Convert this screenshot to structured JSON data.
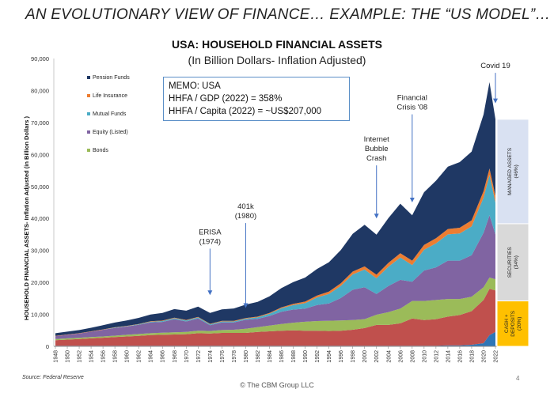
{
  "slide": {
    "title": "AN EVOLUTIONARY VIEW OF FINANCE… EXAMPLE: THE “US MODEL”…",
    "source": "Source: Federal Reserve",
    "footer": "© The CBM Group LLC",
    "page_number": "4"
  },
  "memo": {
    "line1": "MEMO: USA",
    "line2": "HHFA / GDP (2022) = 358%",
    "line3": "HHFA / Capita (2022) = ~US$207,000"
  },
  "annotations": [
    {
      "lines": [
        "ERISA",
        "(1974)"
      ],
      "year": 1974,
      "tip_value": 16000,
      "text_value": 35000
    },
    {
      "lines": [
        "401k",
        "(1980)"
      ],
      "year": 1980,
      "tip_value": 12000,
      "text_value": 43000
    },
    {
      "lines": [
        "Internet",
        "Bubble",
        "Crash"
      ],
      "year": 2002,
      "tip_value": 40000,
      "text_value": 64000
    },
    {
      "lines": [
        "Financial",
        "Crisis '08"
      ],
      "year": 2008,
      "tip_value": 45000,
      "text_value": 77000
    },
    {
      "lines": [
        "Covid 19"
      ],
      "year": 2022,
      "tip_value": 76000,
      "text_value": 87000
    }
  ],
  "side_boxes": [
    {
      "label": "MANAGED ASSETS (46%)",
      "color": "#d9e1f2",
      "from": 0.54,
      "to": 1.0
    },
    {
      "label": "SECURITIES (34%)",
      "color": "#d9d9d9",
      "from": 0.2,
      "to": 0.54
    },
    {
      "label": "CASH + DEPOSITS (20%)",
      "color": "#ffc000",
      "from": 0.0,
      "to": 0.2
    }
  ],
  "chart_data": {
    "type": "area",
    "title": "USA: HOUSEHOLD FINANCIAL ASSETS",
    "subtitle": "(In Billion Dollars- Inflation Adjusted)",
    "ylabel": "HOUSEHOLD FINANCIAL ASSETS- Inflation Adjusted (in Billion Dollars )",
    "xlabel": "",
    "ylim": [
      0,
      90000
    ],
    "yticks": [
      "0",
      "10,000",
      "20,000",
      "30,000",
      "40,000",
      "50,000",
      "60,000",
      "70,000",
      "80,000",
      "90,000"
    ],
    "x": [
      1948,
      1950,
      1952,
      1954,
      1956,
      1958,
      1960,
      1962,
      1964,
      1966,
      1968,
      1970,
      1972,
      1974,
      1976,
      1978,
      1980,
      1982,
      1984,
      1986,
      1988,
      1990,
      1992,
      1994,
      1996,
      1998,
      2000,
      2002,
      2004,
      2006,
      2008,
      2010,
      2012,
      2014,
      2016,
      2018,
      2020,
      2021,
      2022
    ],
    "xtick_labels": [
      "1948",
      "1950",
      "1952",
      "1954",
      "1956",
      "1958",
      "1960",
      "1962",
      "1964",
      "1966",
      "1968",
      "1970",
      "1972",
      "1974",
      "1976",
      "1978",
      "1980",
      "1982",
      "1984",
      "1986",
      "1988",
      "1990",
      "1992",
      "1994",
      "1996",
      "1998",
      "2000",
      "2002",
      "2004",
      "2006",
      "2008",
      "2010",
      "2012",
      "2014",
      "2016",
      "2018",
      "2020",
      "2022"
    ],
    "legend_position": "top-left",
    "stack_order_bottom_to_top": [
      "Deposits",
      "Bonds",
      "Equity (Listed)",
      "Mutual Funds",
      "Life Insurance",
      "Pension Funds"
    ],
    "series": [
      {
        "name": "Pension Funds",
        "color": "#1f3864",
        "values": [
          800,
          900,
          1000,
          1100,
          1300,
          1500,
          1700,
          1900,
          2100,
          2400,
          2700,
          2900,
          3200,
          3400,
          3600,
          3900,
          4200,
          4600,
          5200,
          6000,
          6800,
          7500,
          8300,
          9200,
          10400,
          11800,
          13000,
          12500,
          14000,
          15500,
          14200,
          16500,
          18000,
          19500,
          20500,
          21500,
          24000,
          27000,
          24000
        ]
      },
      {
        "name": "Life Insurance",
        "color": "#ed7d31",
        "values": [
          100,
          100,
          100,
          100,
          100,
          100,
          100,
          100,
          150,
          150,
          150,
          150,
          150,
          150,
          150,
          150,
          200,
          200,
          250,
          300,
          400,
          500,
          600,
          700,
          800,
          900,
          1000,
          1100,
          1200,
          1300,
          1400,
          1500,
          1600,
          1700,
          1800,
          1900,
          2000,
          2100,
          2000
        ]
      },
      {
        "name": "Mutual Funds",
        "color": "#4bacc6",
        "values": [
          0,
          0,
          0,
          0,
          0,
          100,
          100,
          150,
          200,
          250,
          300,
          300,
          350,
          300,
          300,
          300,
          350,
          500,
          700,
          1100,
          1400,
          1700,
          2400,
          3000,
          3800,
          4800,
          5500,
          4900,
          6000,
          7000,
          5200,
          6500,
          7500,
          8200,
          8500,
          9000,
          11000,
          12500,
          10000
        ]
      },
      {
        "name": "Equity (Listed)",
        "color": "#8064a2",
        "values": [
          900,
          1100,
          1300,
          1700,
          2100,
          2400,
          2600,
          2900,
          3400,
          3400,
          4100,
          3300,
          3800,
          1800,
          2400,
          2300,
          2800,
          2600,
          3000,
          3800,
          4100,
          4100,
          5000,
          5400,
          7000,
          9500,
          10000,
          6500,
          8200,
          9000,
          6000,
          9500,
          10200,
          12000,
          12000,
          13000,
          17000,
          19500,
          14000
        ]
      },
      {
        "name": "Bonds",
        "color": "#9bbb59",
        "values": [
          400,
          400,
          400,
          400,
          400,
          450,
          500,
          550,
          600,
          650,
          700,
          700,
          800,
          800,
          900,
          1000,
          1300,
          1500,
          1800,
          2100,
          2400,
          2800,
          3000,
          3200,
          3200,
          3000,
          2800,
          3200,
          4000,
          4600,
          5500,
          6000,
          6000,
          5500,
          5000,
          4500,
          4000,
          3500,
          3500
        ]
      },
      {
        "name": "Deposits",
        "color": "#c0504d",
        "values": [
          1700,
          1900,
          2100,
          2300,
          2500,
          2700,
          2900,
          3100,
          3300,
          3400,
          3500,
          3600,
          3900,
          3800,
          4000,
          4000,
          4000,
          4300,
          4500,
          4700,
          4800,
          4700,
          4700,
          4600,
          4700,
          5000,
          5500,
          6500,
          6500,
          7000,
          8500,
          8000,
          8300,
          9000,
          9500,
          10500,
          13500,
          14500,
          13000
        ]
      },
      {
        "name": "Cash",
        "color": "#2e75b6",
        "values": [
          200,
          200,
          200,
          200,
          200,
          200,
          200,
          200,
          200,
          200,
          200,
          200,
          200,
          200,
          200,
          200,
          200,
          200,
          200,
          200,
          200,
          200,
          200,
          200,
          200,
          200,
          200,
          200,
          200,
          200,
          200,
          200,
          200,
          300,
          300,
          500,
          1000,
          3500,
          4500
        ]
      }
    ],
    "legend_entries": [
      "Pension Funds",
      "Life Insurance",
      "Mutual Funds",
      "Equity (Listed)",
      "Bonds"
    ]
  }
}
